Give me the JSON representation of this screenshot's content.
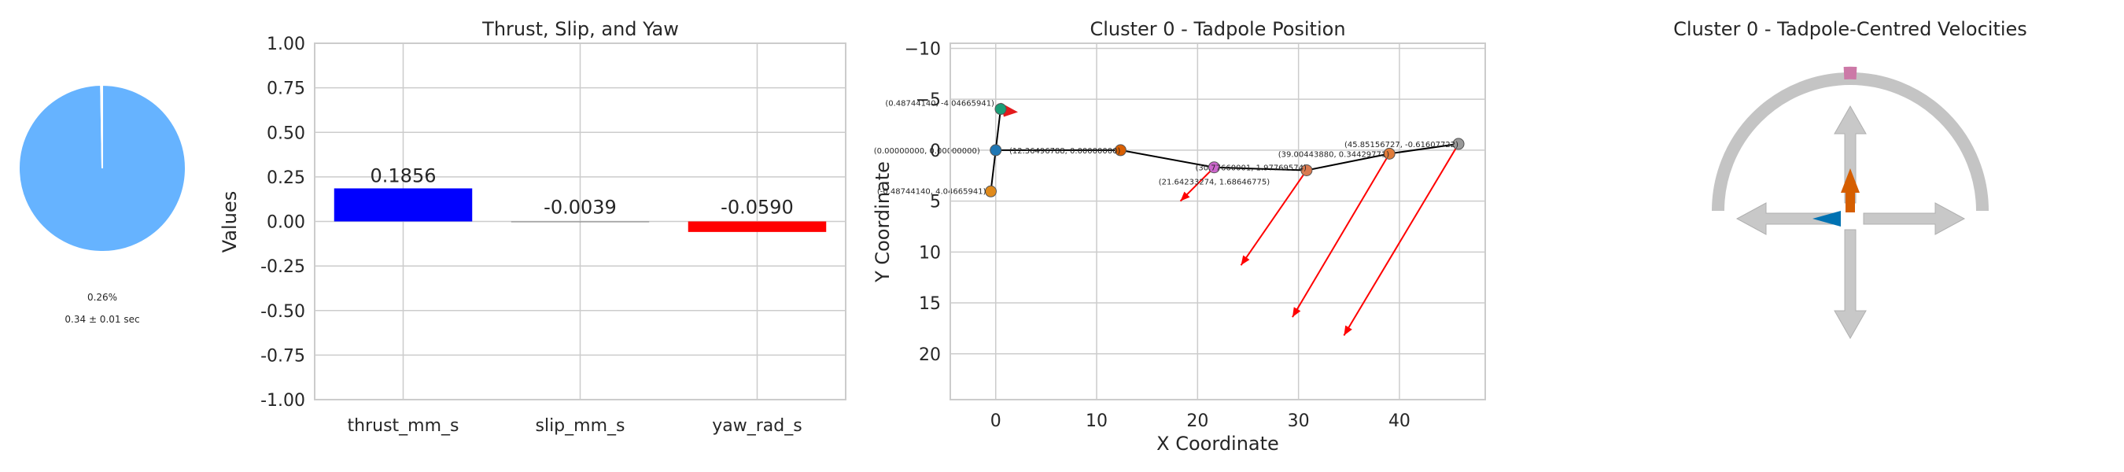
{
  "chart_data": [
    {
      "type": "pie",
      "values": [
        99.74,
        0.26
      ],
      "colors": [
        "#66b3ff",
        "#ffffff"
      ],
      "labels": [
        "0.26%",
        "0.34 ± 0.01 sec"
      ]
    },
    {
      "type": "bar",
      "title": "Thrust, Slip, and Yaw",
      "ylabel": "Values",
      "xlabel": "",
      "categories": [
        "thrust_mm_s",
        "slip_mm_s",
        "yaw_rad_s"
      ],
      "values": [
        0.1856,
        -0.0039,
        -0.059
      ],
      "value_labels": [
        "0.1856",
        "-0.0039",
        "-0.0590"
      ],
      "colors": [
        "#0000ff",
        "#808080",
        "#ff0000"
      ],
      "ylim": [
        -1.0,
        1.0
      ],
      "yticks": [
        "-1.00",
        "-0.75",
        "-0.50",
        "-0.25",
        "0.00",
        "0.25",
        "0.50",
        "0.75",
        "1.00"
      ],
      "grid": true
    },
    {
      "type": "scatter",
      "title": "Cluster 0 - Tadpole Position",
      "xlabel": "X Coordinate",
      "ylabel": "Y Coordinate",
      "xlim": [
        -4.5,
        48.5
      ],
      "ylim": [
        24.5,
        -10.5
      ],
      "y_inverted": true,
      "xticks": [
        "0",
        "10",
        "20",
        "30",
        "40"
      ],
      "yticks": [
        "−10",
        "−5",
        "0",
        "5",
        "10",
        "15",
        "20"
      ],
      "points": [
        {
          "x": 0.487,
          "y": -4.047,
          "color": "#1b9e77"
        },
        {
          "x": 0.0,
          "y": 0.0,
          "color": "#1f77b4"
        },
        {
          "x": -0.487,
          "y": 4.047,
          "color": "#e08a1b"
        },
        {
          "x": 12.365,
          "y": 0.0,
          "color": "#d95f02"
        },
        {
          "x": 21.642,
          "y": 1.687,
          "color": "#cc66cc"
        },
        {
          "x": 30.8,
          "y": 1.977,
          "color": "#d97a50"
        },
        {
          "x": 39.004,
          "y": 0.344,
          "color": "#e07b39"
        },
        {
          "x": 45.852,
          "y": -0.616,
          "color": "#999999"
        }
      ],
      "point_labels": [
        {
          "text": "(0.48744140, -4.04665941)",
          "x": 0.487,
          "y": -4.047
        },
        {
          "text": "(0.00000000, 0.00000000)",
          "x": 0.0,
          "y": 0.0
        },
        {
          "text": "(-0.48744140, 4.04665941)",
          "x": -0.487,
          "y": 4.047
        },
        {
          "text": "(12.36496788, 0.00000000)",
          "x": 12.365,
          "y": 0.0
        },
        {
          "text": "(21.64233274, 1.68646775)",
          "x": 21.642,
          "y": 1.687
        },
        {
          "text": "(30.77660001, 1.97769574)",
          "x": 30.8,
          "y": 1.977
        },
        {
          "text": "(39.00443880, 0.34429771)",
          "x": 39.004,
          "y": 0.344
        },
        {
          "text": "(45.85156727, -0.61607722)",
          "x": 45.852,
          "y": -0.616
        }
      ],
      "spine": [
        [
          0.487,
          -4.047
        ],
        [
          0.0,
          0.0
        ],
        [
          -0.487,
          4.047
        ],
        [
          0.0,
          0.0
        ],
        [
          12.365,
          0.0
        ],
        [
          21.642,
          1.687
        ],
        [
          30.8,
          1.977
        ],
        [
          39.004,
          0.344
        ],
        [
          45.852,
          -0.616
        ]
      ],
      "arrows": [
        {
          "from": [
            21.642,
            1.687
          ],
          "to": [
            18.3,
            5.0
          ]
        },
        {
          "from": [
            30.8,
            1.977
          ],
          "to": [
            24.3,
            11.3
          ]
        },
        {
          "from": [
            39.004,
            0.344
          ],
          "to": [
            29.4,
            16.4
          ]
        },
        {
          "from": [
            45.852,
            -0.616
          ],
          "to": [
            34.5,
            18.2
          ]
        }
      ],
      "grid": true
    },
    {
      "type": "gauge",
      "title": "Cluster 0 - Tadpole-Centred Velocities",
      "arc_marker_color": "#cc79a7",
      "axis_arrow_color": "#c8c8c8",
      "thrust_color": "#d55e00",
      "slip_color": "#0072b2"
    }
  ]
}
